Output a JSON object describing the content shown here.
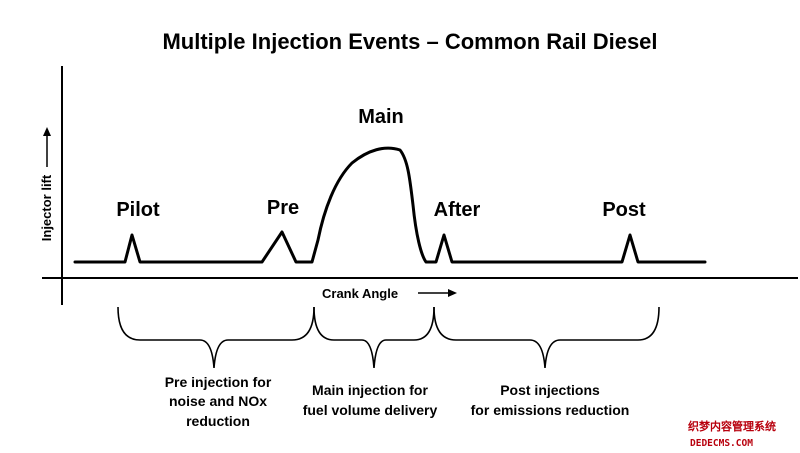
{
  "title": "Multiple Injection Events – Common Rail Diesel",
  "y_axis_label": "Injector lift",
  "x_axis_label": "Crank Angle",
  "events": [
    {
      "id": "pilot",
      "label": "Pilot"
    },
    {
      "id": "pre",
      "label": "Pre"
    },
    {
      "id": "main",
      "label": "Main"
    },
    {
      "id": "after",
      "label": "After"
    },
    {
      "id": "post",
      "label": "Post"
    }
  ],
  "groups": [
    {
      "id": "pre-injection",
      "lines": [
        "Pre injection for",
        "noise and NOx",
        "reduction"
      ]
    },
    {
      "id": "main-injection",
      "lines": [
        "Main injection for",
        "fuel volume delivery"
      ]
    },
    {
      "id": "post-injections",
      "lines": [
        "Post injections",
        "for emissions reduction"
      ]
    }
  ],
  "watermark": {
    "line1": "织梦内容管理系统",
    "line2": "DEDECMS.COM"
  }
}
